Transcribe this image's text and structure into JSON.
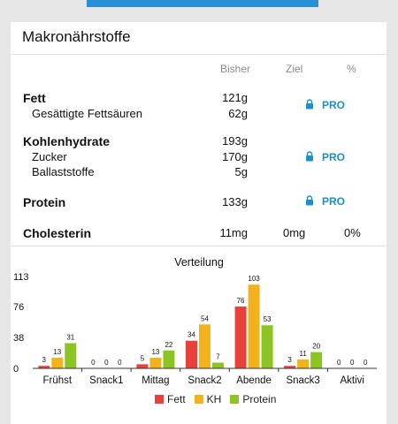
{
  "card": {
    "title": "Makronährstoffe"
  },
  "columns": {
    "bisher": "Bisher",
    "ziel": "Ziel",
    "percent": "%"
  },
  "rows": {
    "fett": {
      "label": "Fett",
      "value": "121g",
      "pro": "PRO"
    },
    "gesaettigte": {
      "label": "Gesättigte Fettsäuren",
      "value": "62g"
    },
    "kohlenhydrate": {
      "label": "Kohlenhydrate",
      "value": "193g"
    },
    "zucker": {
      "label": "Zucker",
      "value": "170g",
      "pro": "PRO"
    },
    "ballaststoffe": {
      "label": "Ballaststoffe",
      "value": "5g"
    },
    "protein": {
      "label": "Protein",
      "value": "133g",
      "pro": "PRO"
    },
    "cholesterin": {
      "label": "Cholesterin",
      "value": "11mg",
      "ziel": "0mg",
      "percent": "0%"
    }
  },
  "colors": {
    "fett": "#e8403a",
    "kh": "#f2b21b",
    "protein": "#8cc424",
    "pro": "#1a8fc8"
  },
  "chart_data": {
    "type": "bar",
    "title": "Verteilung",
    "categories": [
      "Frühst",
      "Snack1",
      "Mittag",
      "Snack2",
      "Abende",
      "Snack3",
      "Aktivi"
    ],
    "series": [
      {
        "name": "Fett",
        "color": "#e8403a",
        "values": [
          3,
          0,
          5,
          34,
          76,
          3,
          0
        ]
      },
      {
        "name": "KH",
        "color": "#f2b21b",
        "values": [
          13,
          0,
          13,
          54,
          103,
          11,
          0
        ]
      },
      {
        "name": "Protein",
        "color": "#8cc424",
        "values": [
          31,
          0,
          22,
          7,
          53,
          20,
          0
        ]
      }
    ],
    "yticks": [
      "0",
      "38",
      "76",
      "113"
    ],
    "ylim": [
      0,
      113
    ],
    "grid": false,
    "legend": "bottom"
  }
}
